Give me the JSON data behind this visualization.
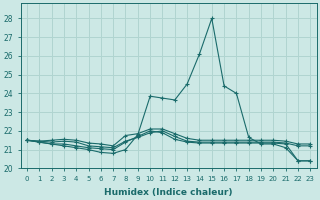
{
  "xlabel": "Humidex (Indice chaleur)",
  "xlim": [
    -0.5,
    23.5
  ],
  "ylim": [
    20,
    28.8
  ],
  "yticks": [
    20,
    21,
    22,
    23,
    24,
    25,
    26,
    27,
    28
  ],
  "xticks": [
    0,
    1,
    2,
    3,
    4,
    5,
    6,
    7,
    8,
    9,
    10,
    11,
    12,
    13,
    14,
    15,
    16,
    17,
    18,
    19,
    20,
    21,
    22,
    23
  ],
  "bg_color": "#cce8e5",
  "line_color": "#1a6b6b",
  "grid_color": "#b0d4d0",
  "curves": [
    [
      21.5,
      21.4,
      21.3,
      21.2,
      21.1,
      21.0,
      20.85,
      20.8,
      21.0,
      21.8,
      23.85,
      23.75,
      23.65,
      24.5,
      26.1,
      28.0,
      24.4,
      24.0,
      21.65,
      21.3,
      21.3,
      21.1,
      20.4,
      20.4
    ],
    [
      21.5,
      21.4,
      21.3,
      21.3,
      21.2,
      21.1,
      21.05,
      21.0,
      21.4,
      21.7,
      22.0,
      21.9,
      21.55,
      21.4,
      21.35,
      21.35,
      21.35,
      21.35,
      21.35,
      21.35,
      21.35,
      21.3,
      20.4,
      20.4
    ],
    [
      21.5,
      21.45,
      21.4,
      21.45,
      21.4,
      21.2,
      21.15,
      21.1,
      21.45,
      21.65,
      21.9,
      22.0,
      21.7,
      21.45,
      21.4,
      21.4,
      21.4,
      21.4,
      21.4,
      21.4,
      21.4,
      21.35,
      21.2,
      21.2
    ],
    [
      21.5,
      21.45,
      21.5,
      21.55,
      21.5,
      21.35,
      21.3,
      21.2,
      21.75,
      21.85,
      22.1,
      22.1,
      21.85,
      21.6,
      21.5,
      21.5,
      21.5,
      21.5,
      21.5,
      21.5,
      21.5,
      21.45,
      21.3,
      21.3
    ]
  ]
}
